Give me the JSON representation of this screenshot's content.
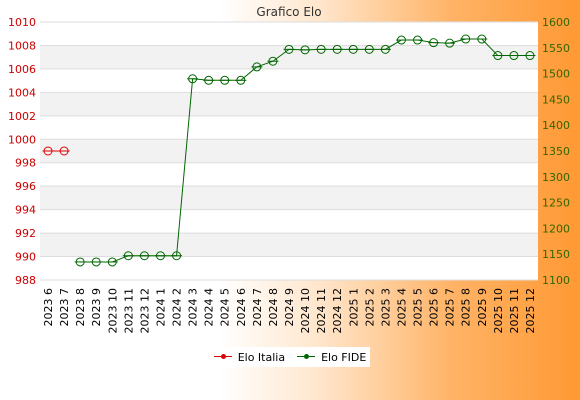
{
  "chart_data": {
    "type": "line",
    "title": "Grafico Elo",
    "categories": [
      "2023 6",
      "2023 7",
      "2023 8",
      "2023 9",
      "2023 10",
      "2023 11",
      "2023 12",
      "2024 1",
      "2024 2",
      "2024 3",
      "2024 4",
      "2024 5",
      "2024 6",
      "2024 7",
      "2024 8",
      "2024 9",
      "2024 10",
      "2024 11",
      "2024 12",
      "2025 1",
      "2025 2",
      "2025 3",
      "2025 4",
      "2025 5",
      "2025 6",
      "2025 7",
      "2025 8",
      "2025 9",
      "2025 10",
      "2025 11",
      "2025 12"
    ],
    "series": [
      {
        "name": "Elo Italia",
        "axis": "left",
        "color": "#dd0000",
        "values": [
          999,
          999,
          null,
          null,
          null,
          null,
          null,
          null,
          null,
          null,
          null,
          null,
          null,
          null,
          null,
          null,
          null,
          null,
          null,
          null,
          null,
          null,
          null,
          null,
          null,
          null,
          null,
          null,
          null,
          null,
          null
        ]
      },
      {
        "name": "Elo FIDE",
        "axis": "right",
        "color": "#006600",
        "values": [
          null,
          null,
          1135,
          1135,
          1135,
          1147,
          1147,
          1147,
          1147,
          1490,
          1487,
          1487,
          1487,
          1513,
          1524,
          1547,
          1546,
          1547,
          1547,
          1547,
          1547,
          1547,
          1565,
          1565,
          1560,
          1559,
          1567,
          1567,
          1535,
          1535,
          1535
        ]
      }
    ],
    "y_left": {
      "min": 988,
      "max": 1010,
      "ticks": [
        988,
        990,
        992,
        994,
        996,
        998,
        1000,
        1002,
        1004,
        1006,
        1008,
        1010
      ],
      "color": "#cc0000"
    },
    "y_right": {
      "min": 1100,
      "max": 1600,
      "ticks": [
        1100,
        1150,
        1200,
        1250,
        1300,
        1350,
        1400,
        1450,
        1500,
        1550,
        1600
      ],
      "color": "#336600"
    },
    "grid": true,
    "legend_position": "bottom"
  }
}
